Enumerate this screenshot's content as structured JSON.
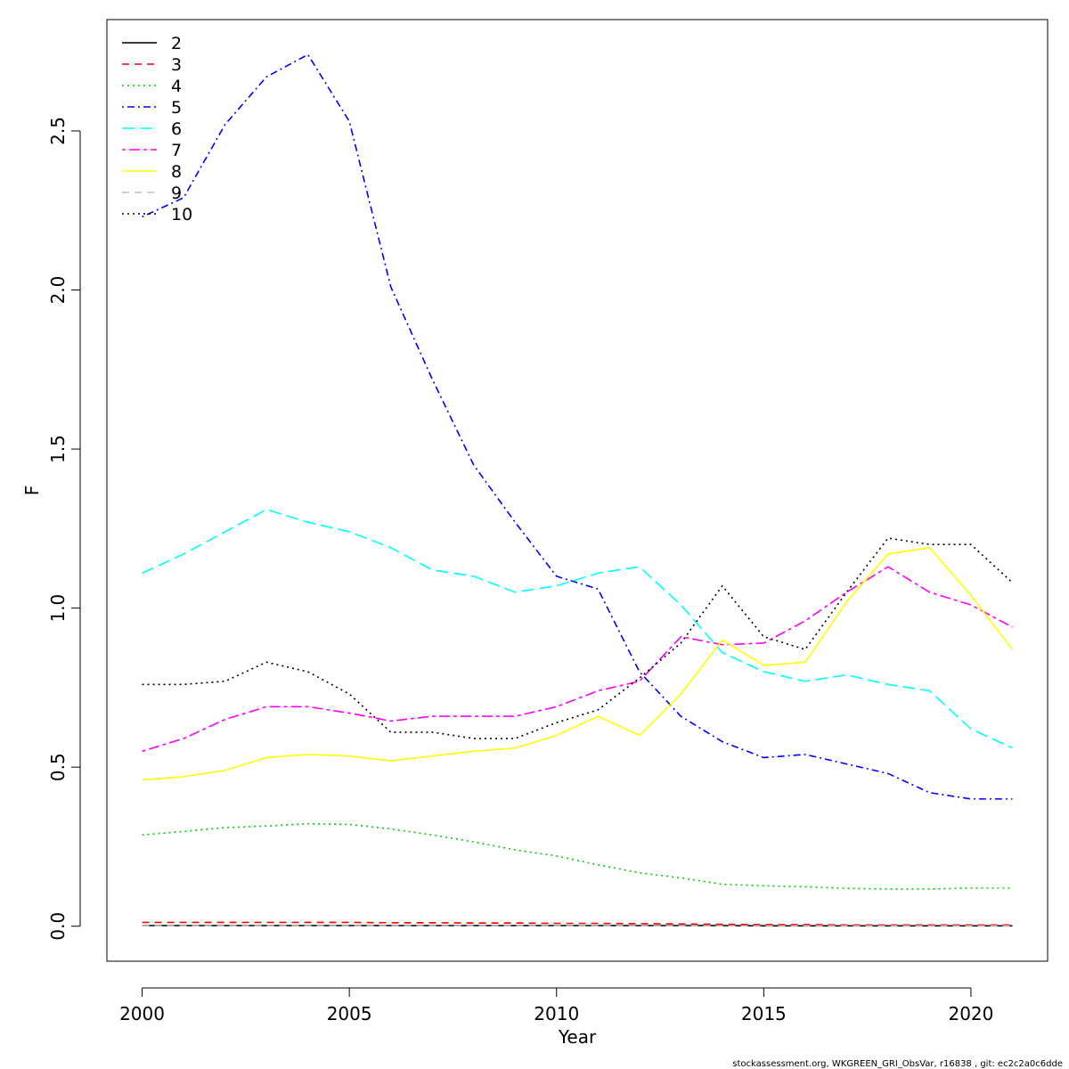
{
  "chart_data": {
    "type": "line",
    "xlabel": "Year",
    "ylabel": "F",
    "xlim": [
      1999.15,
      2021.85
    ],
    "ylim": [
      -0.11,
      2.85
    ],
    "x_ticks": [
      2000,
      2005,
      2010,
      2015,
      2020
    ],
    "y_ticks": [
      0.0,
      0.5,
      1.0,
      1.5,
      2.0,
      2.5
    ],
    "x_tick_labels": [
      "2000",
      "2005",
      "2010",
      "2015",
      "2020"
    ],
    "y_tick_labels": [
      "0.0",
      "0.5",
      "1.0",
      "1.5",
      "2.0",
      "2.5"
    ],
    "grid": false,
    "legend_position": "top-left",
    "x": [
      2000,
      2001,
      2002,
      2003,
      2004,
      2005,
      2006,
      2007,
      2008,
      2009,
      2010,
      2011,
      2012,
      2013,
      2014,
      2015,
      2016,
      2017,
      2018,
      2019,
      2020,
      2021
    ],
    "series": [
      {
        "name": "2",
        "color": "#000000",
        "dash": "solid",
        "values": [
          0.002,
          0.002,
          0.002,
          0.002,
          0.002,
          0.002,
          0.002,
          0.002,
          0.002,
          0.002,
          0.002,
          0.002,
          0.002,
          0.002,
          0.002,
          0.001,
          0.001,
          0.001,
          0.001,
          0.001,
          0.001,
          0.001
        ]
      },
      {
        "name": "3",
        "color": "#ff0000",
        "dash": "dashed",
        "values": [
          0.012,
          0.012,
          0.012,
          0.012,
          0.012,
          0.012,
          0.011,
          0.011,
          0.01,
          0.01,
          0.009,
          0.009,
          0.008,
          0.007,
          0.006,
          0.005,
          0.005,
          0.004,
          0.004,
          0.004,
          0.004,
          0.004
        ]
      },
      {
        "name": "4",
        "color": "#00cd00",
        "dash": "dotted",
        "values": [
          0.287,
          0.298,
          0.31,
          0.315,
          0.322,
          0.32,
          0.306,
          0.287,
          0.265,
          0.24,
          0.221,
          0.193,
          0.168,
          0.152,
          0.132,
          0.127,
          0.124,
          0.119,
          0.117,
          0.117,
          0.12,
          0.12
        ]
      },
      {
        "name": "5",
        "color": "#0000ff",
        "dash": "dotdash",
        "values": [
          2.23,
          2.29,
          2.52,
          2.67,
          2.74,
          2.53,
          2.01,
          1.72,
          1.45,
          1.27,
          1.1,
          1.06,
          0.8,
          0.66,
          0.58,
          0.53,
          0.54,
          0.51,
          0.48,
          0.42,
          0.4,
          0.4
        ]
      },
      {
        "name": "6",
        "color": "#00ffff",
        "dash": "longdash",
        "values": [
          1.11,
          1.17,
          1.24,
          1.31,
          1.27,
          1.24,
          1.19,
          1.12,
          1.1,
          1.05,
          1.07,
          1.11,
          1.13,
          1.01,
          0.86,
          0.8,
          0.77,
          0.79,
          0.76,
          0.74,
          0.62,
          0.56
        ]
      },
      {
        "name": "7",
        "color": "#ff00ff",
        "dash": "twodash",
        "values": [
          0.55,
          0.59,
          0.65,
          0.69,
          0.69,
          0.67,
          0.645,
          0.66,
          0.66,
          0.66,
          0.69,
          0.74,
          0.77,
          0.91,
          0.885,
          0.89,
          0.96,
          1.05,
          1.13,
          1.05,
          1.01,
          0.94
        ]
      },
      {
        "name": "8",
        "color": "#ffff00",
        "dash": "solid",
        "values": [
          0.46,
          0.47,
          0.49,
          0.53,
          0.54,
          0.535,
          0.52,
          0.535,
          0.55,
          0.56,
          0.6,
          0.66,
          0.6,
          0.73,
          0.9,
          0.82,
          0.83,
          1.02,
          1.17,
          1.19,
          1.04,
          0.87
        ]
      },
      {
        "name": "9",
        "color": "#bebebe",
        "dash": "dashed",
        "values": [
          0.001,
          0.001,
          0.001,
          0.001,
          0.001,
          0.001,
          0.001,
          0.001,
          0.001,
          0.001,
          0.001,
          0.001,
          0.001,
          0.001,
          0.001,
          0.001,
          0.001,
          0.001,
          0.001,
          0.001,
          0.001,
          0.001
        ]
      },
      {
        "name": "10",
        "color": "#000000",
        "dash": "dotted",
        "values": [
          0.76,
          0.76,
          0.77,
          0.83,
          0.8,
          0.73,
          0.61,
          0.61,
          0.59,
          0.59,
          0.64,
          0.68,
          0.78,
          0.89,
          1.07,
          0.91,
          0.87,
          1.05,
          1.22,
          1.2,
          1.2,
          1.08
        ]
      }
    ]
  },
  "footer": "stockassessment.org, WKGREEN_GRI_ObsVar, r16838 , git: ec2c2a0c6dde"
}
